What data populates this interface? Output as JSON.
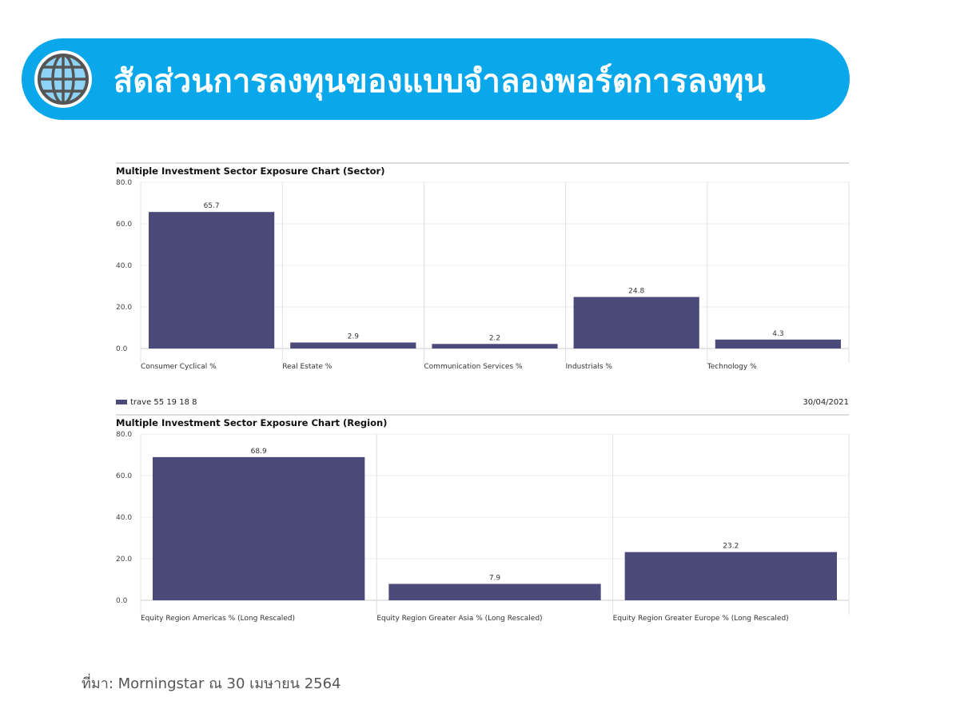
{
  "header": {
    "title": "สัดส่วนการลงทุนของแบบจำลองพอร์ตการลงทุน",
    "icon": "globe-icon"
  },
  "chart_data": [
    {
      "type": "bar",
      "title": "Multiple Investment Sector Exposure Chart (Sector)",
      "categories": [
        "Consumer Cyclical %",
        "Real Estate %",
        "Communication Services %",
        "Industrials %",
        "Technology %"
      ],
      "values": [
        65.7,
        2.9,
        2.2,
        24.8,
        4.3
      ],
      "ylim": [
        0,
        80
      ],
      "yticks": [
        "0.0",
        "20.0",
        "40.0",
        "60.0",
        "80.0"
      ],
      "color": "#4b4a78",
      "grid": true
    },
    {
      "type": "bar",
      "title": "Multiple Investment Sector Exposure Chart (Region)",
      "categories": [
        "Equity Region Americas % (Long Rescaled)",
        "Equity Region Greater Asia % (Long Rescaled)",
        "Equity Region Greater Europe % (Long Rescaled)"
      ],
      "values": [
        68.9,
        7.9,
        23.2
      ],
      "ylim": [
        0,
        80
      ],
      "yticks": [
        "0.0",
        "20.0",
        "40.0",
        "60.0",
        "80.0"
      ],
      "color": "#4b4a78",
      "grid": true
    }
  ],
  "legend": {
    "label": "trave 55 19 18 8"
  },
  "date": "30/04/2021",
  "source": "ที่มา: Morningstar ณ 30 เมษายน 2564"
}
